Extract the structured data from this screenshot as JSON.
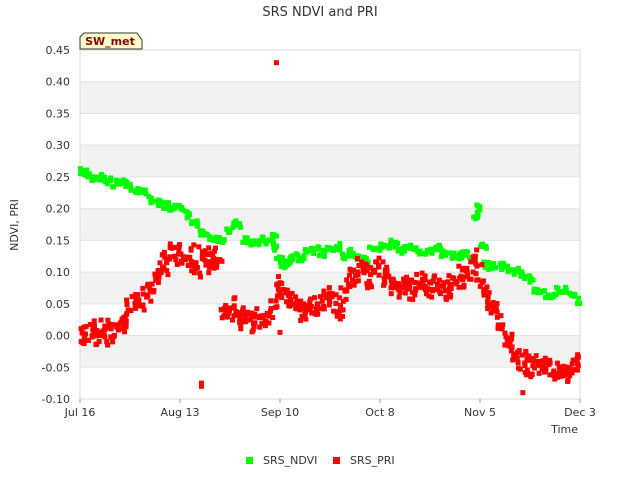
{
  "chart_data": {
    "type": "scatter",
    "title": "SRS NDVI and PRI",
    "badge": "SW_met",
    "xlabel": "Time",
    "ylabel": "NDVI, PRI",
    "ylim": [
      -0.1,
      0.45
    ],
    "y_ticks": [
      -0.1,
      -0.05,
      0.0,
      0.05,
      0.1,
      0.15,
      0.2,
      0.25,
      0.3,
      0.35,
      0.4,
      0.45
    ],
    "y_tick_labels": [
      "-0.10",
      "-0.05",
      "0.00",
      "0.05",
      "0.10",
      "0.15",
      "0.20",
      "0.25",
      "0.30",
      "0.35",
      "0.40",
      "0.45"
    ],
    "x_tick_labels": [
      "Jul 16",
      "Aug 13",
      "Sep 10",
      "Oct 8",
      "Nov 5",
      "Dec 3"
    ],
    "x_range_days": [
      0,
      140
    ],
    "x_tick_days": [
      0,
      28,
      56,
      84,
      112,
      140
    ],
    "grid": "horizontal bands",
    "legend": "bottom-center",
    "series": [
      {
        "name": "SRS_NDVI",
        "color": "#00ff00",
        "x": [
          0,
          2,
          4,
          6,
          8,
          10,
          12,
          14,
          16,
          18,
          20,
          22,
          24,
          26,
          28,
          30,
          32,
          34,
          36,
          38,
          40,
          42,
          44,
          46,
          48,
          50,
          52,
          54,
          55,
          56,
          57,
          58,
          60,
          62,
          64,
          66,
          68,
          70,
          72,
          74,
          76,
          78,
          80,
          82,
          84,
          86,
          88,
          90,
          92,
          94,
          96,
          98,
          100,
          102,
          104,
          106,
          108,
          110,
          111,
          112,
          113,
          114,
          116,
          118,
          120,
          122,
          124,
          126,
          128,
          130,
          132,
          134,
          136,
          138,
          140
        ],
        "y": [
          0.26,
          0.255,
          0.25,
          0.25,
          0.245,
          0.24,
          0.24,
          0.235,
          0.23,
          0.225,
          0.215,
          0.21,
          0.205,
          0.2,
          0.2,
          0.19,
          0.175,
          0.16,
          0.155,
          0.15,
          0.15,
          0.165,
          0.175,
          0.15,
          0.145,
          0.145,
          0.15,
          0.155,
          0.14,
          0.12,
          0.11,
          0.115,
          0.125,
          0.12,
          0.135,
          0.135,
          0.13,
          0.135,
          0.14,
          0.125,
          0.13,
          0.12,
          0.12,
          0.135,
          0.14,
          0.14,
          0.145,
          0.135,
          0.14,
          0.135,
          0.13,
          0.135,
          0.14,
          0.13,
          0.125,
          0.125,
          0.13,
          0.12,
          0.19,
          0.2,
          0.14,
          0.11,
          0.11,
          0.11,
          0.105,
          0.1,
          0.095,
          0.09,
          0.07,
          0.065,
          0.065,
          0.07,
          0.07,
          0.065,
          0.055
        ]
      },
      {
        "name": "SRS_PRI",
        "color": "#ff0000",
        "x": [
          0,
          1,
          2,
          3,
          4,
          5,
          6,
          7,
          8,
          9,
          10,
          11,
          12,
          13,
          14,
          15,
          16,
          17,
          18,
          19,
          20,
          21,
          22,
          23,
          24,
          25,
          26,
          27,
          28,
          29,
          30,
          31,
          32,
          33,
          34,
          35,
          36,
          37,
          38,
          39,
          40,
          41,
          42,
          43,
          44,
          45,
          46,
          47,
          48,
          49,
          50,
          51,
          52,
          53,
          54,
          55,
          56,
          57,
          58,
          59,
          60,
          61,
          62,
          63,
          64,
          65,
          66,
          67,
          68,
          69,
          70,
          71,
          72,
          73,
          74,
          75,
          76,
          77,
          78,
          79,
          80,
          81,
          82,
          83,
          84,
          85,
          86,
          87,
          88,
          89,
          90,
          91,
          92,
          93,
          94,
          95,
          96,
          97,
          98,
          99,
          100,
          101,
          102,
          103,
          104,
          105,
          106,
          107,
          108,
          109,
          110,
          111,
          112,
          113,
          114,
          115,
          116,
          117,
          118,
          119,
          120,
          121,
          122,
          123,
          124,
          125,
          126,
          127,
          128,
          129,
          130,
          131,
          132,
          133,
          134,
          135,
          136,
          137,
          138,
          139,
          140
        ],
        "y": [
          0.005,
          0.0,
          0.005,
          0.01,
          0.0,
          0.015,
          0.005,
          0.0,
          0.01,
          0.005,
          0.01,
          0.015,
          0.02,
          0.03,
          0.045,
          0.05,
          0.055,
          0.045,
          0.06,
          0.065,
          0.08,
          0.09,
          0.1,
          0.11,
          0.12,
          0.11,
          0.13,
          0.12,
          0.13,
          0.12,
          0.125,
          0.13,
          0.11,
          0.1,
          0.13,
          0.12,
          0.11,
          0.13,
          0.12,
          0.11,
          0.04,
          0.035,
          0.03,
          0.045,
          0.035,
          0.03,
          0.025,
          0.03,
          0.02,
          0.025,
          0.03,
          0.025,
          0.02,
          0.03,
          0.04,
          0.06,
          0.08,
          0.07,
          0.06,
          0.055,
          0.05,
          0.04,
          0.03,
          0.035,
          0.045,
          0.05,
          0.04,
          0.035,
          0.05,
          0.06,
          0.07,
          0.05,
          0.04,
          0.045,
          0.065,
          0.08,
          0.09,
          0.1,
          0.11,
          0.105,
          0.1,
          0.09,
          0.095,
          0.105,
          0.11,
          0.1,
          0.09,
          0.085,
          0.08,
          0.075,
          0.08,
          0.085,
          0.075,
          0.07,
          0.08,
          0.09,
          0.085,
          0.08,
          0.075,
          0.07,
          0.08,
          0.075,
          0.07,
          0.075,
          0.08,
          0.085,
          0.09,
          0.095,
          0.09,
          0.1,
          0.11,
          0.12,
          0.1,
          0.08,
          0.06,
          0.05,
          0.04,
          0.03,
          0.02,
          0.0,
          -0.01,
          -0.02,
          -0.03,
          -0.04,
          -0.04,
          -0.045,
          -0.05,
          -0.05,
          -0.045,
          -0.05,
          -0.05,
          -0.05,
          -0.055,
          -0.055,
          -0.06,
          -0.055,
          -0.06,
          -0.055,
          -0.05,
          -0.05,
          -0.045
        ],
        "outliers": [
          {
            "x": 55,
            "y": 0.43
          },
          {
            "x": 34,
            "y": -0.08
          },
          {
            "x": 34,
            "y": -0.075
          },
          {
            "x": 124,
            "y": -0.09
          },
          {
            "x": 56,
            "y": 0.005
          }
        ]
      }
    ]
  }
}
